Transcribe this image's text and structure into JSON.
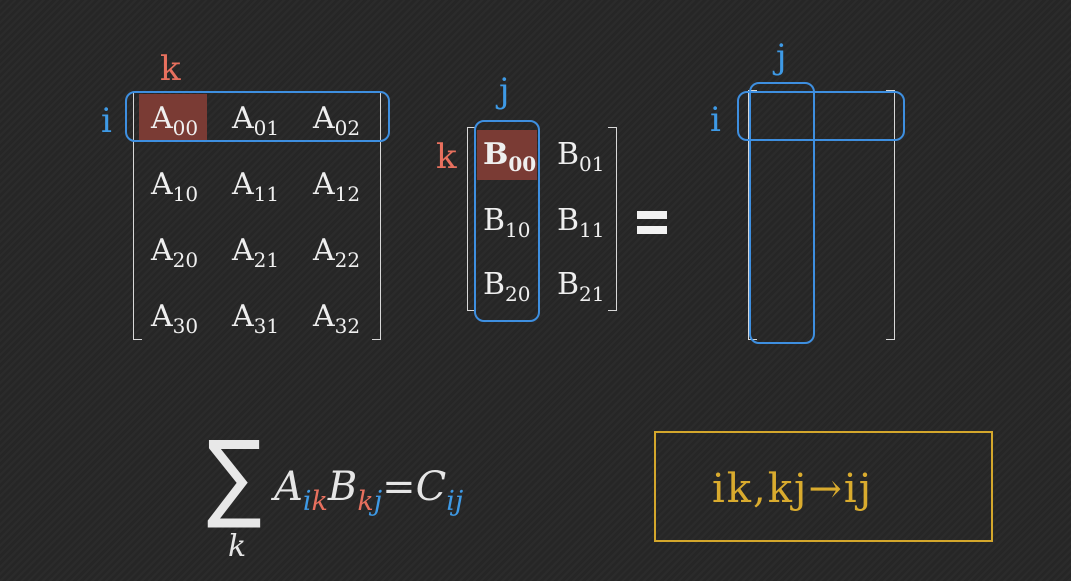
{
  "labels": {
    "i": "i",
    "j": "j",
    "k": "k"
  },
  "matrix_a": {
    "cells": [
      [
        "A",
        "00"
      ],
      [
        "A",
        "01"
      ],
      [
        "A",
        "02"
      ],
      [
        "A",
        "10"
      ],
      [
        "A",
        "11"
      ],
      [
        "A",
        "12"
      ],
      [
        "A",
        "20"
      ],
      [
        "A",
        "21"
      ],
      [
        "A",
        "22"
      ],
      [
        "A",
        "30"
      ],
      [
        "A",
        "31"
      ],
      [
        "A",
        "32"
      ]
    ]
  },
  "matrix_b": {
    "cells": [
      [
        "B",
        "00"
      ],
      [
        "B",
        "01"
      ],
      [
        "B",
        "10"
      ],
      [
        "B",
        "11"
      ],
      [
        "B",
        "20"
      ],
      [
        "B",
        "21"
      ]
    ]
  },
  "formula": {
    "sigma": "∑",
    "index": "k",
    "a": "A",
    "a_i": "i",
    "a_k": "k",
    "b": "B",
    "b_k": "k",
    "b_j": "j",
    "equals": "=",
    "c": "C",
    "c_i": "i",
    "c_j": "j"
  },
  "einsum": {
    "text": "ik,kj→ij"
  },
  "colors": {
    "row_index": "#3e9ae6",
    "sum_index": "#e8705e",
    "einsum": "#d9ab2e",
    "highlight": "#7a3b34"
  }
}
